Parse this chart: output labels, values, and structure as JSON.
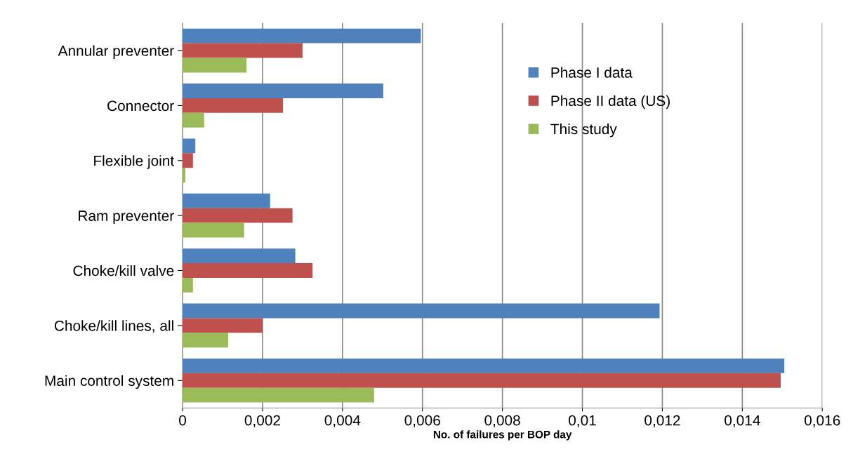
{
  "chart_data": {
    "type": "bar",
    "orientation": "horizontal",
    "xlabel": "No. of failures per BOP day",
    "categories": [
      "Annular preventer",
      "Connector",
      "Flexible joint",
      "Ram preventer",
      "Choke/kill valve",
      "Choke/kill lines, all",
      "Main control system"
    ],
    "series": [
      {
        "name": "Phase I data",
        "color": "#4f81bd",
        "values": [
          0.00596,
          0.00502,
          0.00032,
          0.00219,
          0.00282,
          0.01193,
          0.01505
        ]
      },
      {
        "name": "Phase II data (US)",
        "color": "#c0504d",
        "values": [
          0.003,
          0.00251,
          0.00026,
          0.00275,
          0.00325,
          0.002,
          0.01496
        ]
      },
      {
        "name": "This study",
        "color": "#9bbb59",
        "values": [
          0.0016,
          0.00054,
          7e-05,
          0.00154,
          0.00026,
          0.00114,
          0.00479
        ]
      }
    ],
    "xlim": [
      0,
      0.016
    ],
    "xticks": [
      0,
      {
        "value": 0.002,
        "label": "0,002"
      },
      {
        "value": 0.004,
        "label": "0,004"
      },
      {
        "value": 0.006,
        "label": "0,006"
      },
      {
        "value": 0.008,
        "label": "0,008"
      },
      {
        "value": 0.01,
        "label": "0,01"
      },
      {
        "value": 0.012,
        "label": "0,012"
      },
      {
        "value": 0.014,
        "label": "0,014"
      },
      {
        "value": 0.016,
        "label": "0,016"
      }
    ],
    "grid": "x",
    "legend": "top right"
  }
}
